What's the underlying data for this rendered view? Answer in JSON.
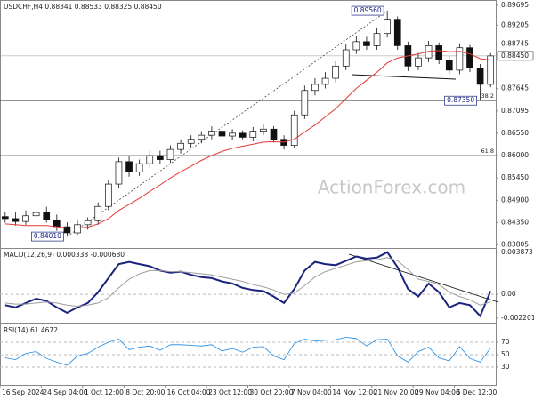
{
  "chart_data": {
    "type": "candlestick",
    "title": "USDCHF,H4  0.88341 0.88533 0.88325 0.88450",
    "watermark": "ActionForex.com",
    "categories": [
      "16 Sep 2024",
      null,
      null,
      null,
      "24 Sep 04:00",
      null,
      null,
      null,
      "1 Oct 12:00",
      null,
      null,
      null,
      "8 Oct 20:00",
      null,
      null,
      null,
      "16 Oct 04:00",
      null,
      null,
      null,
      "23 Oct 12:00",
      null,
      null,
      null,
      "30 Oct 20:00",
      null,
      null,
      null,
      "7 Nov 04:00",
      null,
      null,
      null,
      "14 Nov 12:00",
      null,
      null,
      null,
      "21 Nov 20:00",
      null,
      null,
      null,
      "29 Nov 04:00",
      null,
      null,
      null,
      "6 Dec 12:00",
      null,
      null,
      null
    ],
    "open": [
      0.845,
      0.8445,
      0.8438,
      0.8452,
      0.846,
      0.8442,
      0.8425,
      0.841,
      0.843,
      0.844,
      0.8475,
      0.853,
      0.8585,
      0.856,
      0.858,
      0.86,
      0.859,
      0.8615,
      0.863,
      0.864,
      0.865,
      0.866,
      0.8648,
      0.8655,
      0.8645,
      0.866,
      0.8665,
      0.864,
      0.8625,
      0.87,
      0.876,
      0.8775,
      0.879,
      0.882,
      0.886,
      0.888,
      0.887,
      0.89,
      0.8935,
      0.887,
      0.882,
      0.884,
      0.887,
      0.8835,
      0.881,
      0.8865,
      0.8815,
      0.8775
    ],
    "high": [
      0.8462,
      0.846,
      0.8465,
      0.8472,
      0.8474,
      0.8455,
      0.8436,
      0.844,
      0.8448,
      0.8485,
      0.854,
      0.8595,
      0.8598,
      0.859,
      0.8612,
      0.8612,
      0.8625,
      0.864,
      0.865,
      0.866,
      0.8672,
      0.867,
      0.8665,
      0.8662,
      0.867,
      0.8676,
      0.8672,
      0.865,
      0.871,
      0.8772,
      0.879,
      0.8805,
      0.8832,
      0.8875,
      0.8895,
      0.8892,
      0.8915,
      0.8956,
      0.8942,
      0.888,
      0.8852,
      0.8882,
      0.8878,
      0.8845,
      0.8876,
      0.8872,
      0.8825,
      0.8852
    ],
    "low": [
      0.8435,
      0.8428,
      0.843,
      0.844,
      0.8435,
      0.8415,
      0.8401,
      0.8405,
      0.8418,
      0.843,
      0.8465,
      0.852,
      0.8548,
      0.855,
      0.857,
      0.858,
      0.8582,
      0.8605,
      0.862,
      0.863,
      0.864,
      0.864,
      0.8638,
      0.864,
      0.8635,
      0.865,
      0.8632,
      0.8615,
      0.8618,
      0.869,
      0.8748,
      0.8765,
      0.878,
      0.881,
      0.885,
      0.886,
      0.886,
      0.889,
      0.886,
      0.8808,
      0.881,
      0.883,
      0.8825,
      0.88,
      0.88,
      0.8805,
      0.8735,
      0.8768
    ],
    "close": [
      0.8445,
      0.8438,
      0.8452,
      0.846,
      0.8442,
      0.8425,
      0.841,
      0.843,
      0.844,
      0.8475,
      0.853,
      0.8585,
      0.856,
      0.858,
      0.86,
      0.859,
      0.8615,
      0.863,
      0.864,
      0.865,
      0.866,
      0.8648,
      0.8655,
      0.8645,
      0.866,
      0.8665,
      0.864,
      0.8625,
      0.87,
      0.876,
      0.8775,
      0.879,
      0.882,
      0.886,
      0.888,
      0.887,
      0.89,
      0.8935,
      0.887,
      0.882,
      0.884,
      0.887,
      0.8835,
      0.881,
      0.8865,
      0.8815,
      0.8775,
      0.8845
    ],
    "moving_average": {
      "color": "#e53935",
      "values": [
        0.8432,
        0.843,
        0.8428,
        0.8428,
        0.8428,
        0.8425,
        0.8422,
        0.8422,
        0.8424,
        0.8432,
        0.8445,
        0.8465,
        0.848,
        0.8495,
        0.8512,
        0.8528,
        0.8545,
        0.856,
        0.8574,
        0.8588,
        0.86,
        0.861,
        0.8618,
        0.8623,
        0.8628,
        0.8633,
        0.8634,
        0.8633,
        0.864,
        0.8658,
        0.8675,
        0.8695,
        0.8715,
        0.874,
        0.8765,
        0.8785,
        0.8805,
        0.8828,
        0.884,
        0.8845,
        0.885,
        0.8856,
        0.8858,
        0.8855,
        0.8856,
        0.885,
        0.8838,
        0.8835
      ]
    },
    "ylim": [
      0.8375,
      0.8978
    ],
    "yticks": [
      {
        "value": 0.89695,
        "label": "0.89695"
      },
      {
        "value": 0.89205,
        "label": "0.89205"
      },
      {
        "value": 0.88745,
        "label": "0.88745"
      },
      {
        "value": 0.87645,
        "label": "0.87645"
      },
      {
        "value": 0.87095,
        "label": "0.87095"
      },
      {
        "value": 0.8655,
        "label": "0.86550"
      },
      {
        "value": 0.86,
        "label": "0.86000"
      },
      {
        "value": 0.8545,
        "label": "0.85450"
      },
      {
        "value": 0.849,
        "label": "0.84900"
      },
      {
        "value": 0.8435,
        "label": "0.84350"
      },
      {
        "value": 0.83805,
        "label": "0.83805"
      }
    ],
    "last_price": {
      "value": 0.8845,
      "label": "0.88450"
    },
    "annotations": [
      {
        "value": 0.8956,
        "label": "0.89560"
      },
      {
        "value": 0.8735,
        "label": "0.87350"
      },
      {
        "value": 0.8401,
        "label": "0.84010"
      }
    ],
    "fib_levels": [
      {
        "name": "38.2",
        "value": 0.8735
      },
      {
        "name": "61.8",
        "value": 0.86
      }
    ],
    "macd": {
      "label": "MACD(12,26,9) 0.000338 -0.000680",
      "ylim": [
        -0.00245,
        0.00412
      ],
      "yticks": [
        0.003873,
        {
          "value": 0,
          "label": "0.00"
        },
        -0.002201
      ],
      "series": [
        {
          "color": "#1a237e",
          "values": [
            -0.001,
            -0.0012,
            -0.0008,
            -0.0004,
            -0.0006,
            -0.0012,
            -0.0017,
            -0.0012,
            -0.0008,
            0.0002,
            0.0015,
            0.0028,
            0.003,
            0.0028,
            0.0026,
            0.0022,
            0.002,
            0.0021,
            0.0018,
            0.0016,
            0.0015,
            0.0012,
            0.001,
            0.0006,
            0.0004,
            0.0003,
            -0.0002,
            -0.0008,
            0.0005,
            0.0022,
            0.003,
            0.0028,
            0.0027,
            0.0031,
            0.0035,
            0.0033,
            0.0034,
            0.0039,
            0.0025,
            0.0005,
            -0.0002,
            0.001,
            0.0002,
            -0.0012,
            -0.0008,
            -0.001,
            -0.002,
            0.0003
          ]
        },
        {
          "color": "#9e9e9e",
          "values": [
            -0.0008,
            -0.0009,
            -0.0009,
            -0.0008,
            -0.0007,
            -0.0008,
            -0.001,
            -0.0011,
            -0.001,
            -0.0008,
            -0.0003,
            0.0006,
            0.0014,
            0.0019,
            0.0022,
            0.0022,
            0.0021,
            0.0021,
            0.002,
            0.0019,
            0.0018,
            0.0016,
            0.0014,
            0.0012,
            0.0009,
            0.0007,
            0.0004,
            0.0,
            0.0001,
            0.0008,
            0.0016,
            0.0021,
            0.0024,
            0.0027,
            0.003,
            0.0031,
            0.0032,
            0.0034,
            0.0031,
            0.0023,
            0.0014,
            0.0012,
            0.0009,
            0.0002,
            -0.0002,
            -0.0005,
            -0.001,
            -0.0007
          ]
        }
      ]
    },
    "rsi": {
      "label": "RSI(14) 61.4672",
      "color": "#1e88e5",
      "ylim": [
        0,
        100
      ],
      "yticks": [
        70,
        50,
        30
      ],
      "values": [
        45,
        42,
        52,
        55,
        44,
        38,
        33,
        48,
        52,
        62,
        70,
        75,
        58,
        62,
        64,
        57,
        66,
        66,
        65,
        64,
        66,
        56,
        60,
        54,
        62,
        63,
        48,
        42,
        68,
        75,
        72,
        73,
        74,
        78,
        76,
        64,
        74,
        75,
        48,
        38,
        55,
        62,
        45,
        40,
        63,
        44,
        38,
        61
      ]
    }
  }
}
